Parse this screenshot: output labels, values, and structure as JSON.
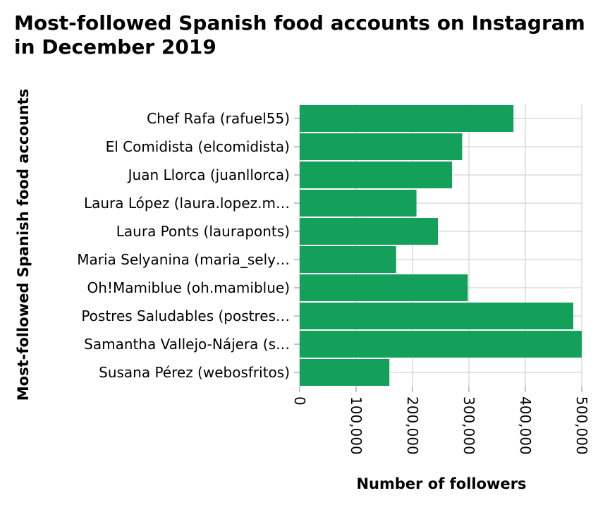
{
  "chart_data": {
    "type": "bar",
    "orientation": "horizontal",
    "title_lines": [
      "Most-followed Spanish food accounts on Instagram",
      "in December 2019"
    ],
    "xlabel": "Number of followers",
    "ylabel": "Most-followed Spanish food accounts",
    "xlim": [
      0,
      500000
    ],
    "xticks": [
      0,
      100000,
      200000,
      300000,
      400000,
      500000
    ],
    "xtick_labels": [
      "0",
      "100,000",
      "200,000",
      "300,000",
      "400,000",
      "500,000"
    ],
    "grid": true,
    "bar_color": "#12a05a",
    "categories": [
      "Chef Rafa (rafuel55)",
      "El Comidista (elcomidista)",
      "Juan Llorca (juanllorca)",
      "Laura López (laura.lopez.m…",
      "Laura Ponts (lauraponts)",
      "Maria Selyanina (maria_sely…",
      "Oh!Mamiblue (oh.mamiblue)",
      "Postres Saludables (postres…",
      "Samantha Vallejo-Nájera (s…",
      "Susana Pérez (webosfritos)"
    ],
    "values": [
      379000,
      288000,
      270000,
      207000,
      245000,
      171000,
      298000,
      485000,
      500000,
      159000
    ]
  }
}
